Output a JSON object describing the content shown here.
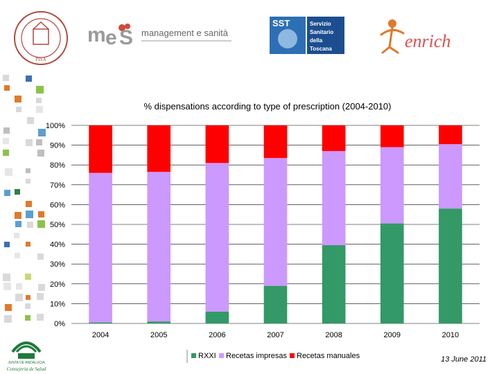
{
  "header": {
    "ms_brand_text": "management e sanità",
    "sst_lines": [
      "Servizio",
      "Sanitario",
      "della",
      "Toscana"
    ],
    "sst_badge": "SST",
    "enrich_text": "enrich",
    "seal_text": "PISA"
  },
  "footer": {
    "date": "13 June 2011",
    "junta_text": "JUNTA DE ANDALUCIA",
    "consejeria_text": "Consejería de Salud"
  },
  "colors": {
    "rxxi": "#339966",
    "recetas_impresas": "#cc99ff",
    "recetas_manuales": "#ff0000",
    "gridline": "#000000"
  },
  "chart_data": {
    "type": "bar",
    "stacked": true,
    "title": "% dispensations according to type of prescription (2004-2010)",
    "categories": [
      "2004",
      "2005",
      "2006",
      "2007",
      "2008",
      "2009",
      "2010"
    ],
    "y_ticks": [
      "0%",
      "10%",
      "20%",
      "30%",
      "40%",
      "50%",
      "60%",
      "70%",
      "80%",
      "90%",
      "100%"
    ],
    "ylim": [
      0,
      100
    ],
    "legend_position": "bottom",
    "series": [
      {
        "name": "RXXI",
        "values": [
          0.5,
          1,
          6,
          19,
          39.5,
          50.5,
          58
        ]
      },
      {
        "name": "Recetas impresas",
        "values": [
          75.5,
          75.5,
          75,
          64.5,
          47.5,
          38.5,
          32.5
        ]
      },
      {
        "name": "Recetas manuales",
        "values": [
          24,
          23.5,
          19,
          16.5,
          13,
          11,
          9.5
        ]
      }
    ]
  }
}
